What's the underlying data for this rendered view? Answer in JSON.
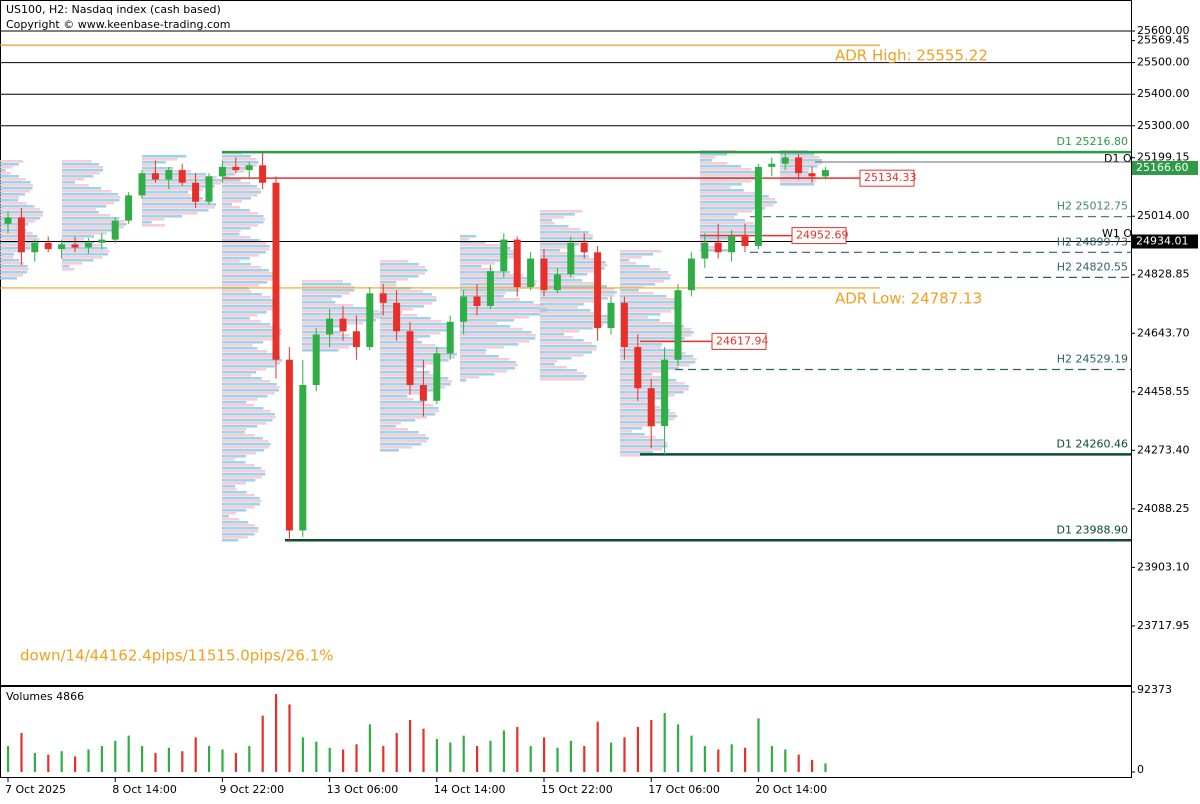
{
  "header": {
    "title": "US100, H2:  Nasdaq index (cash based)",
    "copyright": "Copyright © www.keenbase-trading.com"
  },
  "chart_data": {
    "type": "candlestick",
    "categories": [
      "7 Oct 2025",
      null,
      null,
      null,
      null,
      null,
      null,
      null,
      "8 Oct 14:00",
      null,
      null,
      null,
      null,
      null,
      null,
      null,
      "9 Oct 22:00",
      null,
      null,
      null,
      null,
      null,
      null,
      null,
      "13 Oct 06:00",
      null,
      null,
      null,
      null,
      null,
      null,
      null,
      "14 Oct 14:00",
      null,
      null,
      null,
      null,
      null,
      null,
      null,
      "15 Oct 22:00",
      null,
      null,
      null,
      null,
      null,
      null,
      null,
      "17 Oct 06:00",
      null,
      null,
      null,
      null,
      null,
      null,
      null,
      "20 Oct 14:00",
      null,
      null,
      null,
      null,
      null
    ],
    "open": [
      24990,
      25010,
      24900,
      24930,
      24910,
      24925,
      24915,
      24930,
      24940,
      25000,
      25080,
      25150,
      25130,
      25160,
      25120,
      25060,
      25140,
      25170,
      25160,
      25175,
      25120,
      24560,
      24020,
      24480,
      24640,
      24690,
      24650,
      24600,
      24770,
      24740,
      24650,
      24480,
      24430,
      24580,
      24680,
      24760,
      24730,
      24840,
      24940,
      24790,
      24880,
      24780,
      24830,
      24930,
      24900,
      24660,
      24740,
      24600,
      24470,
      24350,
      24560,
      24780,
      24880,
      24930,
      24900,
      24950,
      24920,
      25170,
      25180,
      25200,
      25150,
      25140
    ],
    "high": [
      25030,
      25040,
      24940,
      24950,
      24940,
      24950,
      24945,
      24960,
      25010,
      25090,
      25160,
      25190,
      25170,
      25180,
      25150,
      25150,
      25190,
      25200,
      25185,
      25216,
      25140,
      24600,
      24560,
      24660,
      24720,
      24730,
      24700,
      24790,
      24800,
      24780,
      24680,
      24560,
      24600,
      24700,
      24780,
      24800,
      24860,
      24960,
      24950,
      24900,
      24910,
      24850,
      24950,
      24960,
      24920,
      24760,
      24760,
      24640,
      24500,
      24600,
      24800,
      24900,
      24960,
      24990,
      24970,
      24990,
      25180,
      25200,
      25216,
      25210,
      25170,
      25170
    ],
    "low": [
      24960,
      24860,
      24870,
      24900,
      24880,
      24900,
      24895,
      24910,
      24930,
      24990,
      25070,
      25120,
      25100,
      25110,
      25040,
      25050,
      25120,
      25150,
      25130,
      25100,
      24500,
      23989,
      24000,
      24460,
      24600,
      24620,
      24560,
      24590,
      24700,
      24620,
      24450,
      24380,
      24420,
      24560,
      24640,
      24700,
      24720,
      24820,
      24760,
      24780,
      24760,
      24770,
      24820,
      24880,
      24620,
      24640,
      24560,
      24430,
      24280,
      24260,
      24540,
      24760,
      24850,
      24880,
      24870,
      24900,
      24910,
      25140,
      25160,
      25130,
      25120,
      25130
    ],
    "close": [
      25010,
      24900,
      24930,
      24910,
      24925,
      24915,
      24930,
      24940,
      25000,
      25080,
      25150,
      25130,
      25160,
      25120,
      25060,
      25140,
      25170,
      25160,
      25175,
      25120,
      24560,
      24020,
      24480,
      24640,
      24690,
      24650,
      24600,
      24770,
      24740,
      24650,
      24480,
      24430,
      24580,
      24680,
      24760,
      24730,
      24840,
      24940,
      24790,
      24880,
      24780,
      24830,
      24930,
      24900,
      24660,
      24740,
      24600,
      24470,
      24350,
      24560,
      24780,
      24880,
      24930,
      24900,
      24950,
      24920,
      25170,
      25180,
      25200,
      25150,
      25140,
      25160
    ],
    "up_color": "#2fae45",
    "down_color": "#e8302a",
    "ylim": [
      23531,
      25698
    ],
    "yticks": [
      {
        "value": 25600,
        "label": "25600.00"
      },
      25569.45,
      {
        "value": 25500,
        "label": "25500.00"
      },
      {
        "value": 25400,
        "label": "25400.00"
      },
      {
        "value": 25300,
        "label": "25300.00"
      },
      25199.15,
      {
        "value": 25014,
        "label": "25014.00"
      },
      24828.85,
      {
        "value": 24643.7,
        "label": "24643.70"
      },
      24458.55,
      {
        "value": 24273.4,
        "label": "24273.40"
      },
      24088.25,
      {
        "value": 23903.1,
        "label": "23903.10"
      },
      23717.95
    ],
    "hlines": [
      25600,
      25500,
      25400,
      25300,
      24934.01
    ],
    "price_labels": [
      {
        "value": 25166.6,
        "label": "25166.60",
        "color": "#2e9a46"
      },
      {
        "value": 24934.01,
        "label": "24934.01",
        "color": "#000000"
      }
    ],
    "levels": [
      {
        "label": "D1 25216.80",
        "value": 25216.8,
        "color": "#2e9a46",
        "dashed": false
      },
      {
        "label": "H2 25012.75",
        "value": 25012.75,
        "color": "#3f8a66",
        "dashed": true
      },
      {
        "label": "H2 24899.73",
        "value": 24899.73,
        "color": "#2f5f6a",
        "dashed": true
      },
      {
        "label": "H2 24820.55",
        "value": 24820.55,
        "color": "#2f5f6a",
        "dashed": true
      },
      {
        "label": "H2 24529.19",
        "value": 24529.19,
        "color": "#2f5f6a",
        "dashed": true
      },
      {
        "label": "D1 24260.46",
        "value": 24260.46,
        "color": "#0b4d2e",
        "dashed": false
      },
      {
        "label": "D1 23988.90",
        "value": 23988.9,
        "color": "#0b4d2e",
        "dashed": false
      }
    ],
    "adr": [
      {
        "label": "ADR High: 25555.22",
        "value": 25555.22
      },
      {
        "label": "ADR Low: 24787.13",
        "value": 24787.13
      }
    ],
    "adr_color": "#f0a020",
    "poc": [
      {
        "label": "25134.33",
        "value": 25134.33
      },
      {
        "label": "24952.69",
        "value": 24952.69
      },
      {
        "label": "24617.94",
        "value": 24617.94
      }
    ],
    "poc_color": "#e8302a",
    "open_labels": [
      "D1 O",
      "W1 O"
    ],
    "annotation": "down/14/44162.4pips/11515.0pips/26.1%",
    "volume": {
      "title": "Volumes 4866",
      "ylim": [
        0,
        92373
      ],
      "yticks": [
        92373,
        0
      ],
      "values": [
        30000,
        45000,
        22000,
        20000,
        24000,
        18000,
        26000,
        30000,
        36000,
        42000,
        30000,
        22000,
        28000,
        24000,
        40000,
        30000,
        26000,
        22000,
        30000,
        65000,
        90000,
        78000,
        40000,
        35000,
        28000,
        26000,
        32000,
        55000,
        30000,
        45000,
        60000,
        50000,
        38000,
        34000,
        42000,
        30000,
        36000,
        48000,
        52000,
        30000,
        40000,
        28000,
        36000,
        30000,
        58000,
        34000,
        40000,
        52000,
        60000,
        68000,
        55000,
        42000,
        30000,
        26000,
        32000,
        28000,
        62000,
        30000,
        26000,
        20000,
        14000,
        10000
      ]
    }
  }
}
